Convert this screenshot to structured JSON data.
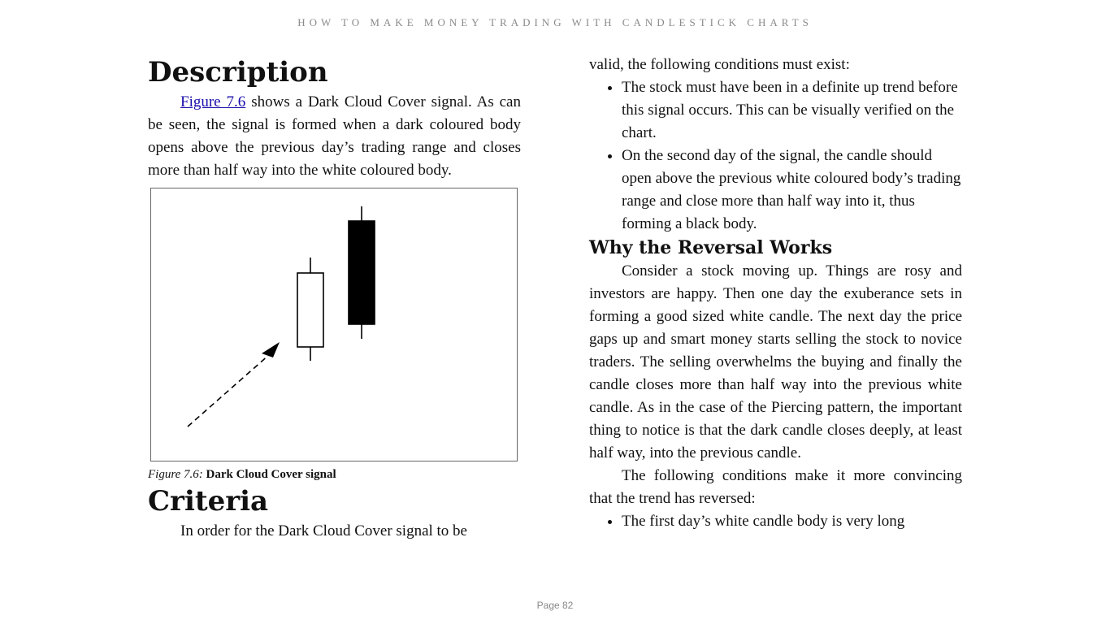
{
  "header": {
    "running_title": "HOW TO MAKE MONEY TRADING WITH CANDLESTICK CHARTS"
  },
  "left": {
    "description_heading": "Description",
    "description_link": "Figure 7.6",
    "description_text": " shows a Dark Cloud Cover signal. As can be seen, the signal is formed when a dark coloured body opens above the previous day’s trading range and closes more than half way into the white coloured body.",
    "figure_label": "Figure 7.6:",
    "figure_title": "Dark Cloud Cover signal",
    "criteria_heading": "Criteria",
    "criteria_intro": "In order for the Dark Cloud Cover signal to be"
  },
  "right": {
    "criteria_continued": "valid, the following conditions must exist:",
    "conditions": [
      "The stock must have been in a definite up trend before this signal occurs. This can be visually verified on the chart.",
      "On the second day of the signal, the candle should open above the previous white coloured body’s trading range and close more than half way into it, thus forming a black body."
    ],
    "why_heading": "Why the Reversal Works",
    "why_text": "Consider a stock moving up. Things are rosy and investors are happy. Then one day the exuberance sets in forming a good sized white candle. The next day the price gaps up and smart money starts selling the stock to novice traders. The selling overwhelms the buying and finally the candle closes more than half way into the previous white candle. As in the case of the Piercing pattern, the important thing to notice is that the dark candle closes deeply, at least half way, into the previous candle.",
    "convincing_text": "The following conditions make it more convincing that the trend has reversed:",
    "convincing_items": [
      "The first day’s white candle body is very long"
    ]
  },
  "footer": {
    "page_label": "Page 82"
  }
}
